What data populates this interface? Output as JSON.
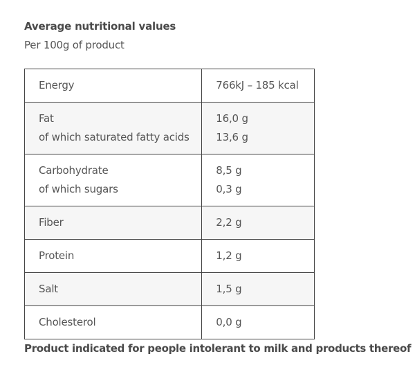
{
  "heading": "Average nutritional values",
  "subheading": "Per 100g of product",
  "rows": [
    {
      "labels": [
        "Energy"
      ],
      "values": [
        "766kJ – 185 kcal"
      ]
    },
    {
      "labels": [
        "Fat",
        "of which saturated fatty acids"
      ],
      "values": [
        "16,0 g",
        "13,6 g"
      ]
    },
    {
      "labels": [
        "Carbohydrate",
        "of which sugars"
      ],
      "values": [
        "8,5 g",
        "0,3 g"
      ]
    },
    {
      "labels": [
        "Fiber"
      ],
      "values": [
        "2,2 g"
      ]
    },
    {
      "labels": [
        "Protein"
      ],
      "values": [
        "1,2 g"
      ]
    },
    {
      "labels": [
        "Salt"
      ],
      "values": [
        "1,5 g"
      ]
    },
    {
      "labels": [
        "Cholesterol"
      ],
      "values": [
        "0,0 g"
      ]
    }
  ],
  "footnote": "Product indicated for people intolerant to milk and products thereof"
}
